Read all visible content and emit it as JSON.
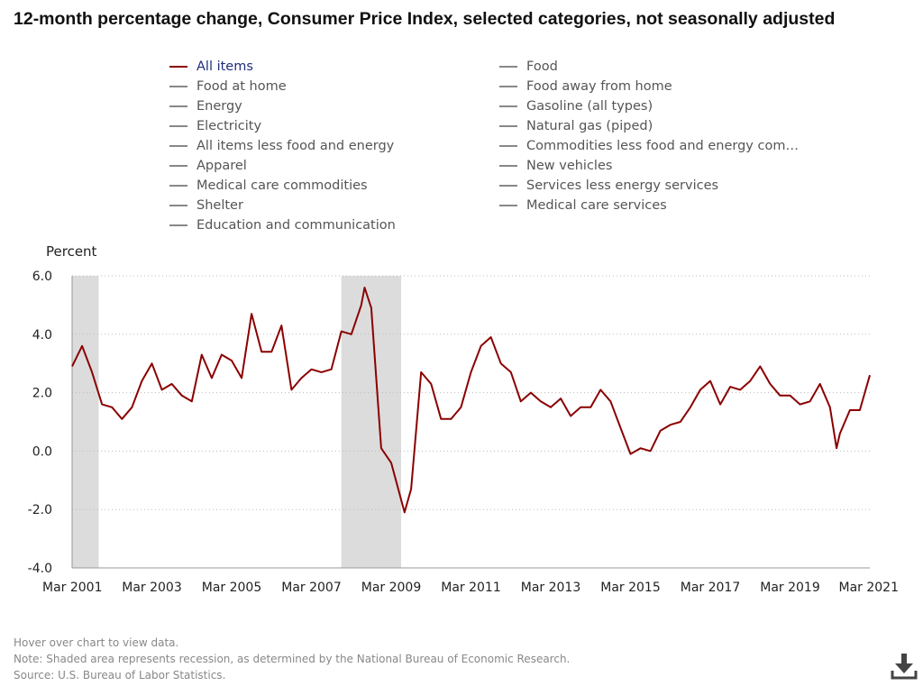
{
  "title": "12-month percentage change, Consumer Price Index, selected categories, not seasonally adjusted",
  "legend": {
    "left": [
      "All items",
      "Food at home",
      "Energy",
      "Electricity",
      "All items less food and energy",
      "Apparel",
      "Medical care commodities",
      "Shelter",
      "Education and communication"
    ],
    "right": [
      "Food",
      "Food away from home",
      "Gasoline (all types)",
      "Natural gas (piped)",
      "Commodities less food and energy com…",
      "New vehicles",
      "Services less energy services",
      "Medical care services"
    ],
    "active": "All items"
  },
  "footer": {
    "hover": "Hover over chart to view data.",
    "note": "Note: Shaded area represents recession, as determined by the National Bureau of Economic Research.",
    "source": "Source: U.S. Bureau of Labor Statistics."
  },
  "colors": {
    "series": "#8b0000",
    "recession": "#dcdcdc",
    "grid": "#bbbbbb",
    "axis": "#999999"
  },
  "icons": {
    "download": "download-icon"
  },
  "chart_data": {
    "type": "line",
    "title": "",
    "ylabel": "Percent",
    "xlabel": "",
    "ylim": [
      -4.0,
      6.0
    ],
    "yticks": [
      -4.0,
      -2.0,
      0.0,
      2.0,
      4.0,
      6.0
    ],
    "ytick_labels": [
      "-4.0",
      "-2.0",
      "0.0",
      "2.0",
      "4.0",
      "6.0"
    ],
    "xticks": [
      "2001-03",
      "2003-03",
      "2005-03",
      "2007-03",
      "2009-03",
      "2011-03",
      "2013-03",
      "2015-03",
      "2017-03",
      "2019-03",
      "2021-03"
    ],
    "xtick_labels": [
      "Mar 2001",
      "Mar 2003",
      "Mar 2005",
      "Mar 2007",
      "Mar 2009",
      "Mar 2011",
      "Mar 2013",
      "Mar 2015",
      "Mar 2017",
      "Mar 2019",
      "Mar 2021"
    ],
    "xrange": [
      "2001-03",
      "2021-03"
    ],
    "grid": "horizontal dotted",
    "recessions": [
      [
        "2001-03",
        "2001-11"
      ],
      [
        "2007-12",
        "2009-06"
      ]
    ],
    "series": [
      {
        "name": "All items",
        "points": [
          [
            "2001-03",
            2.9
          ],
          [
            "2001-06",
            3.6
          ],
          [
            "2001-09",
            2.7
          ],
          [
            "2001-12",
            1.6
          ],
          [
            "2002-03",
            1.5
          ],
          [
            "2002-06",
            1.1
          ],
          [
            "2002-09",
            1.5
          ],
          [
            "2002-12",
            2.4
          ],
          [
            "2003-03",
            3.0
          ],
          [
            "2003-06",
            2.1
          ],
          [
            "2003-09",
            2.3
          ],
          [
            "2003-12",
            1.9
          ],
          [
            "2004-03",
            1.7
          ],
          [
            "2004-06",
            3.3
          ],
          [
            "2004-09",
            2.5
          ],
          [
            "2004-12",
            3.3
          ],
          [
            "2005-03",
            3.1
          ],
          [
            "2005-06",
            2.5
          ],
          [
            "2005-09",
            4.7
          ],
          [
            "2005-12",
            3.4
          ],
          [
            "2006-03",
            3.4
          ],
          [
            "2006-06",
            4.3
          ],
          [
            "2006-09",
            2.1
          ],
          [
            "2006-12",
            2.5
          ],
          [
            "2007-03",
            2.8
          ],
          [
            "2007-06",
            2.7
          ],
          [
            "2007-09",
            2.8
          ],
          [
            "2007-12",
            4.1
          ],
          [
            "2008-03",
            4.0
          ],
          [
            "2008-06",
            5.0
          ],
          [
            "2008-07",
            5.6
          ],
          [
            "2008-09",
            4.9
          ],
          [
            "2008-12",
            0.1
          ],
          [
            "2009-03",
            -0.4
          ],
          [
            "2009-07",
            -2.1
          ],
          [
            "2009-09",
            -1.3
          ],
          [
            "2009-12",
            2.7
          ],
          [
            "2010-03",
            2.3
          ],
          [
            "2010-06",
            1.1
          ],
          [
            "2010-09",
            1.1
          ],
          [
            "2010-12",
            1.5
          ],
          [
            "2011-03",
            2.7
          ],
          [
            "2011-06",
            3.6
          ],
          [
            "2011-09",
            3.9
          ],
          [
            "2011-12",
            3.0
          ],
          [
            "2012-03",
            2.7
          ],
          [
            "2012-06",
            1.7
          ],
          [
            "2012-09",
            2.0
          ],
          [
            "2012-12",
            1.7
          ],
          [
            "2013-03",
            1.5
          ],
          [
            "2013-06",
            1.8
          ],
          [
            "2013-09",
            1.2
          ],
          [
            "2013-12",
            1.5
          ],
          [
            "2014-03",
            1.5
          ],
          [
            "2014-06",
            2.1
          ],
          [
            "2014-09",
            1.7
          ],
          [
            "2014-12",
            0.8
          ],
          [
            "2015-03",
            -0.1
          ],
          [
            "2015-06",
            0.1
          ],
          [
            "2015-09",
            0.0
          ],
          [
            "2015-12",
            0.7
          ],
          [
            "2016-03",
            0.9
          ],
          [
            "2016-06",
            1.0
          ],
          [
            "2016-09",
            1.5
          ],
          [
            "2016-12",
            2.1
          ],
          [
            "2017-03",
            2.4
          ],
          [
            "2017-06",
            1.6
          ],
          [
            "2017-09",
            2.2
          ],
          [
            "2017-12",
            2.1
          ],
          [
            "2018-03",
            2.4
          ],
          [
            "2018-06",
            2.9
          ],
          [
            "2018-09",
            2.3
          ],
          [
            "2018-12",
            1.9
          ],
          [
            "2019-03",
            1.9
          ],
          [
            "2019-06",
            1.6
          ],
          [
            "2019-09",
            1.7
          ],
          [
            "2019-12",
            2.3
          ],
          [
            "2020-03",
            1.5
          ],
          [
            "2020-05",
            0.1
          ],
          [
            "2020-06",
            0.6
          ],
          [
            "2020-09",
            1.4
          ],
          [
            "2020-12",
            1.4
          ],
          [
            "2021-03",
            2.6
          ]
        ]
      }
    ]
  }
}
